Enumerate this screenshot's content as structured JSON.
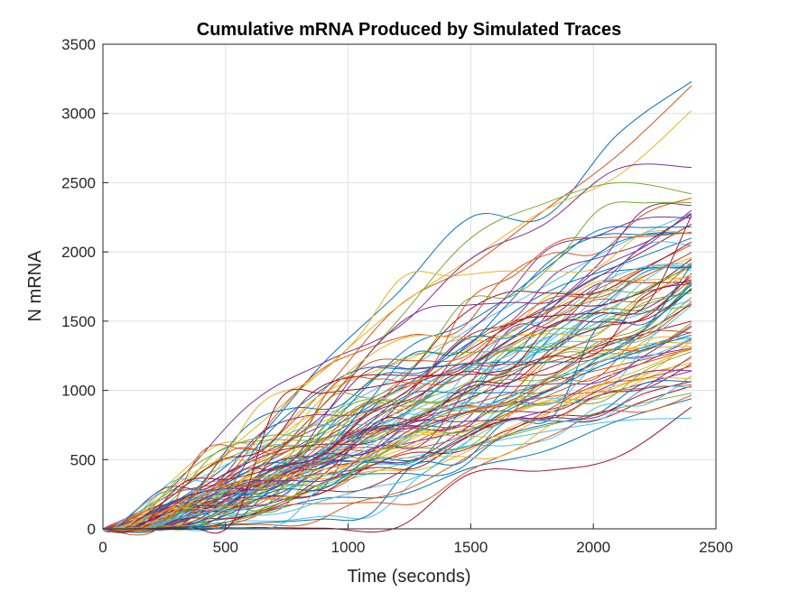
{
  "chart_data": {
    "type": "line",
    "title": "Cumulative mRNA Produced by Simulated Traces",
    "xlabel": "Time (seconds)",
    "ylabel": "N mRNA",
    "xlim": [
      0,
      2500
    ],
    "ylim": [
      0,
      3500
    ],
    "xticks": [
      "0",
      "500",
      "1000",
      "1500",
      "2000",
      "2500"
    ],
    "yticks": [
      "0",
      "500",
      "1000",
      "1500",
      "2000",
      "2500",
      "3000",
      "3500"
    ],
    "grid": true,
    "series_count": 100,
    "color_order": [
      "#0072BD",
      "#D95319",
      "#EDB120",
      "#7E2F8E",
      "#77AC30",
      "#4DBEEE",
      "#A2142F"
    ],
    "x_max": 2400,
    "series": [
      {
        "x": [
          0,
          250,
          600,
          900,
          1200,
          1500,
          1800,
          2100,
          2400
        ],
        "values": [
          0,
          150,
          600,
          1200,
          1700,
          2250,
          2250,
          2850,
          3230
        ]
      },
      {
        "x": [
          0,
          250,
          600,
          900,
          1200,
          1500,
          1800,
          2100,
          2400
        ],
        "values": [
          0,
          80,
          500,
          1000,
          1600,
          1900,
          2300,
          2700,
          3200
        ]
      },
      {
        "x": [
          0,
          250,
          600,
          900,
          1200,
          1500,
          1800,
          2100,
          2400
        ],
        "values": [
          0,
          200,
          700,
          1150,
          1600,
          1950,
          2300,
          2550,
          3020
        ]
      },
      {
        "x": [
          0,
          250,
          600,
          900,
          1200,
          1500,
          1800,
          2100,
          2400
        ],
        "values": [
          0,
          250,
          900,
          1200,
          1450,
          1950,
          2200,
          2600,
          2610
        ]
      },
      {
        "x": [
          0,
          250,
          600,
          900,
          1200,
          1500,
          1800,
          2100,
          2400
        ],
        "values": [
          0,
          60,
          400,
          900,
          1500,
          2100,
          2350,
          2500,
          2420
        ]
      },
      {
        "x": [
          0,
          250,
          600,
          900,
          1200,
          1500,
          1800,
          2100,
          2400
        ],
        "values": [
          0,
          100,
          450,
          800,
          1100,
          1450,
          1750,
          2050,
          2280
        ]
      },
      {
        "x": [
          0,
          250,
          600,
          900,
          1200,
          1500,
          1800,
          2100,
          2400
        ],
        "values": [
          0,
          40,
          300,
          650,
          950,
          1300,
          1600,
          1900,
          2200
        ]
      },
      {
        "x": [
          0,
          250,
          600,
          900,
          1200,
          1500,
          1800,
          2100,
          2400
        ],
        "values": [
          0,
          120,
          420,
          700,
          1000,
          1350,
          1700,
          1900,
          2100
        ]
      },
      {
        "x": [
          0,
          250,
          600,
          900,
          1200,
          1500,
          1800,
          2100,
          2400
        ],
        "values": [
          0,
          20,
          250,
          550,
          900,
          1250,
          1550,
          1800,
          2050
        ]
      },
      {
        "x": [
          0,
          250,
          600,
          900,
          1200,
          1500,
          1800,
          2100,
          2400
        ],
        "values": [
          0,
          90,
          380,
          680,
          950,
          1200,
          1500,
          1750,
          1960
        ]
      },
      {
        "x": [
          0,
          250,
          600,
          900,
          1200,
          1500,
          1800,
          2100,
          2400
        ],
        "values": [
          0,
          150,
          500,
          750,
          1000,
          1200,
          1450,
          1650,
          1800
        ]
      },
      {
        "x": [
          0,
          250,
          600,
          900,
          1200,
          1500,
          1800,
          2100,
          2400
        ],
        "values": [
          0,
          30,
          220,
          480,
          750,
          1000,
          1300,
          1550,
          1720
        ]
      },
      {
        "x": [
          0,
          250,
          600,
          900,
          1200,
          1500,
          1800,
          2100,
          2400
        ],
        "values": [
          0,
          70,
          330,
          560,
          800,
          1050,
          1300,
          1500,
          1650
        ]
      },
      {
        "x": [
          0,
          250,
          600,
          900,
          1200,
          1500,
          1800,
          2100,
          2400
        ],
        "values": [
          0,
          110,
          360,
          560,
          760,
          950,
          1150,
          1350,
          1500
        ]
      },
      {
        "x": [
          0,
          250,
          600,
          900,
          1200,
          1500,
          1800,
          2100,
          2400
        ],
        "values": [
          0,
          50,
          260,
          450,
          650,
          850,
          1050,
          1250,
          1420
        ]
      },
      {
        "x": [
          0,
          250,
          600,
          900,
          1200,
          1500,
          1800,
          2100,
          2400
        ],
        "values": [
          0,
          160,
          420,
          600,
          760,
          900,
          1050,
          1180,
          1300
        ]
      },
      {
        "x": [
          0,
          250,
          600,
          900,
          1200,
          1500,
          1800,
          2100,
          2400
        ],
        "values": [
          0,
          10,
          180,
          380,
          560,
          740,
          920,
          1070,
          1200
        ]
      },
      {
        "x": [
          0,
          250,
          600,
          900,
          1200,
          1500,
          1800,
          2100,
          2400
        ],
        "values": [
          0,
          80,
          300,
          470,
          600,
          720,
          850,
          1000,
          1140
        ]
      },
      {
        "x": [
          0,
          250,
          600,
          900,
          1200,
          1500,
          1800,
          2100,
          2400
        ],
        "values": [
          0,
          5,
          120,
          300,
          460,
          600,
          740,
          870,
          980
        ]
      },
      {
        "x": [
          0,
          250,
          600,
          900,
          1200,
          1500,
          1800,
          2100,
          2400
        ],
        "values": [
          0,
          40,
          220,
          380,
          500,
          600,
          700,
          780,
          800
        ]
      },
      {
        "x": [
          0,
          250,
          600,
          900,
          1200,
          1500,
          1800,
          2100,
          2400
        ],
        "values": [
          0,
          0,
          10,
          5,
          10,
          400,
          420,
          520,
          880
        ]
      },
      {
        "x": [
          0,
          250,
          600,
          900,
          1200,
          1500,
          1800,
          2100,
          2400
        ],
        "values": [
          0,
          20,
          100,
          220,
          240,
          440,
          560,
          780,
          940
        ]
      },
      {
        "x": [
          0,
          250,
          600,
          900,
          1200,
          1500,
          1800,
          2100,
          2400
        ],
        "values": [
          0,
          140,
          450,
          650,
          750,
          850,
          950,
          1000,
          1040
        ]
      }
    ]
  }
}
